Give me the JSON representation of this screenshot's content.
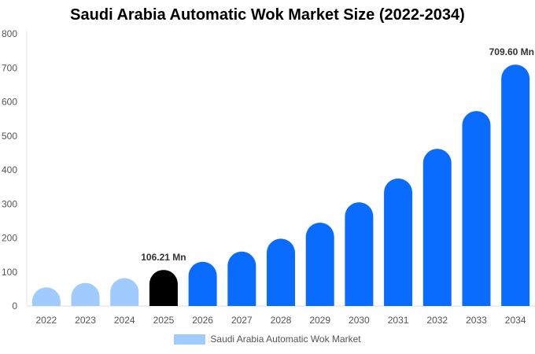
{
  "chart_data": {
    "type": "bar",
    "title": "Saudi Arabia Automatic Wok Market Size (2022-2034)",
    "categories": [
      "2022",
      "2023",
      "2024",
      "2025",
      "2026",
      "2027",
      "2028",
      "2029",
      "2030",
      "2031",
      "2032",
      "2033",
      "2034"
    ],
    "series": [
      {
        "name": "Saudi Arabia Automatic Wok Market",
        "values": [
          55,
          68,
          82,
          106.21,
          130,
          160,
          198,
          245,
          305,
          375,
          462,
          573,
          709.6
        ]
      }
    ],
    "ylim": [
      0,
      800
    ],
    "yticks": [
      0,
      100,
      200,
      300,
      400,
      500,
      600,
      700,
      800
    ],
    "annotations": [
      {
        "index": 3,
        "text": "106.21 Mn"
      },
      {
        "index": 12,
        "text": "709.60 Mn"
      }
    ],
    "colors": {
      "historical": "#9fcbff",
      "base_year": "#000000",
      "forecast": "#0a6cff"
    },
    "bar_color_groups": [
      "historical",
      "historical",
      "historical",
      "base_year",
      "forecast",
      "forecast",
      "forecast",
      "forecast",
      "forecast",
      "forecast",
      "forecast",
      "forecast",
      "forecast"
    ],
    "grid": false,
    "legend_position": "bottom"
  }
}
